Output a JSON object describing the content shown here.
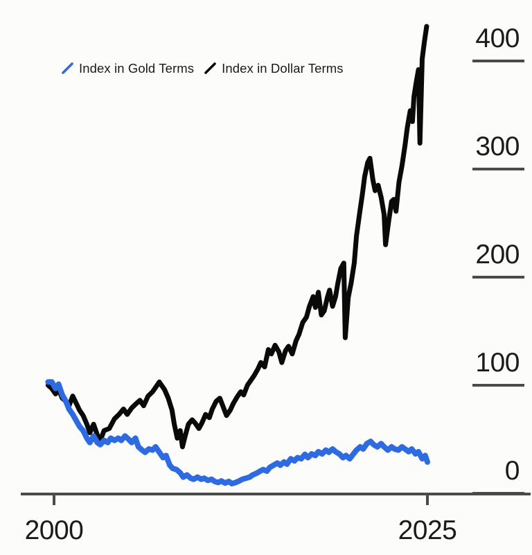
{
  "chart_data": {
    "type": "line",
    "title": "",
    "xlabel": "",
    "ylabel": "",
    "grid": false,
    "legend_position": "top-left",
    "xlim": [
      1999.3,
      2025.9
    ],
    "ylim": [
      0,
      440
    ],
    "x_ticks": [
      "2000",
      "2025"
    ],
    "y_ticks": [
      "0",
      "100",
      "200",
      "300",
      "400"
    ],
    "y_tick_values": [
      0,
      100,
      200,
      300,
      400
    ],
    "x_tick_values": [
      2000,
      2025
    ],
    "colors": {
      "axis": "#4b4b4b",
      "tick_text": "#1b1b1b",
      "background": "#fcfcfa"
    },
    "series": [
      {
        "name": "Index in Gold Terms",
        "color": "#2e6be0",
        "x": [
          1999.6,
          1999.85,
          2000.1,
          2000.3,
          2000.55,
          2000.8,
          2001.0,
          2001.25,
          2001.5,
          2001.7,
          2001.95,
          2002.2,
          2002.4,
          2002.65,
          2002.9,
          2003.1,
          2003.35,
          2003.6,
          2003.8,
          2004.05,
          2004.3,
          2004.5,
          2004.75,
          2005.0,
          2005.2,
          2005.45,
          2005.65,
          2005.9,
          2006.1,
          2006.35,
          2006.6,
          2006.8,
          2007.05,
          2007.3,
          2007.5,
          2007.75,
          2007.95,
          2008.2,
          2008.45,
          2008.65,
          2008.9,
          2009.15,
          2009.35,
          2009.6,
          2009.85,
          2010.05,
          2010.3,
          2010.55,
          2010.75,
          2011.0,
          2011.2,
          2011.45,
          2011.7,
          2011.9,
          2012.15,
          2012.4,
          2012.6,
          2012.85,
          2013.1,
          2013.3,
          2013.55,
          2013.8,
          2014.0,
          2014.25,
          2014.45,
          2014.7,
          2014.95,
          2015.15,
          2015.4,
          2015.6,
          2015.85,
          2016.1,
          2016.3,
          2016.55,
          2016.8,
          2017.0,
          2017.25,
          2017.5,
          2017.7,
          2017.95,
          2018.2,
          2018.4,
          2018.65,
          2018.85,
          2019.1,
          2019.35,
          2019.55,
          2019.8,
          2020.05,
          2020.25,
          2020.5,
          2020.7,
          2020.95,
          2021.2,
          2021.4,
          2021.65,
          2021.9,
          2022.1,
          2022.35,
          2022.6,
          2022.8,
          2023.05,
          2023.3,
          2023.5,
          2023.75,
          2023.95,
          2024.2,
          2024.4,
          2024.65,
          2024.85,
          2025.0
        ],
        "values": [
          103,
          103,
          97,
          101,
          91,
          85,
          78,
          73,
          67,
          62,
          58,
          51,
          47,
          53,
          47,
          45,
          49,
          47,
          51,
          49,
          51,
          49,
          53,
          50,
          47,
          51,
          43,
          40,
          38,
          41,
          40,
          43,
          38,
          33,
          35,
          26,
          23,
          22,
          19,
          15,
          17,
          14,
          13,
          15,
          13,
          14,
          12,
          13,
          11,
          10,
          11.5,
          9.5,
          11,
          9,
          10,
          11.5,
          13,
          14,
          15,
          17,
          18.5,
          20.5,
          22,
          20.5,
          24,
          26,
          28,
          26,
          29,
          27,
          32,
          30,
          33,
          32,
          36,
          33,
          36.5,
          35,
          38.5,
          36.5,
          40,
          38,
          41,
          38.5,
          36.5,
          33,
          35,
          32,
          36.5,
          40,
          43,
          41,
          46,
          48,
          45,
          43,
          46,
          43,
          40,
          43,
          41,
          40,
          43,
          41,
          38.5,
          41,
          36.5,
          38.5,
          32,
          35,
          29
        ]
      },
      {
        "name": "Index in Dollar Terms",
        "color": "#0a0a0a",
        "x": [
          1999.6,
          1999.85,
          2000.1,
          2000.3,
          2000.55,
          2000.8,
          2001.0,
          2001.25,
          2001.5,
          2001.7,
          2001.95,
          2002.2,
          2002.4,
          2002.65,
          2002.9,
          2003.1,
          2003.35,
          2003.7,
          2004.05,
          2004.35,
          2004.65,
          2004.9,
          2005.2,
          2005.5,
          2005.75,
          2006.0,
          2006.3,
          2006.6,
          2006.85,
          2007.05,
          2007.25,
          2007.4,
          2007.65,
          2007.9,
          2008.05,
          2008.25,
          2008.45,
          2008.6,
          2008.8,
          2009.0,
          2009.25,
          2009.45,
          2009.7,
          2009.9,
          2010.15,
          2010.4,
          2010.6,
          2010.85,
          2011.1,
          2011.3,
          2011.55,
          2011.8,
          2012.0,
          2012.25,
          2012.5,
          2012.7,
          2012.95,
          2013.2,
          2013.4,
          2013.65,
          2013.85,
          2014.1,
          2014.35,
          2014.55,
          2014.8,
          2015.05,
          2015.25,
          2015.5,
          2015.7,
          2015.95,
          2016.2,
          2016.4,
          2016.65,
          2016.9,
          2017.1,
          2017.35,
          2017.5,
          2017.7,
          2017.9,
          2018.1,
          2018.3,
          2018.45,
          2018.65,
          2018.85,
          2019.0,
          2019.2,
          2019.4,
          2019.5,
          2019.7,
          2019.9,
          2020.1,
          2020.25,
          2020.45,
          2020.65,
          2020.8,
          2021.0,
          2021.15,
          2021.35,
          2021.5,
          2021.7,
          2021.9,
          2022.1,
          2022.2,
          2022.4,
          2022.6,
          2022.75,
          2022.9,
          2023.1,
          2023.3,
          2023.5,
          2023.65,
          2023.85,
          2024.0,
          2024.1,
          2024.25,
          2024.4,
          2024.5,
          2024.65,
          2024.8,
          2024.95
        ],
        "values": [
          100,
          97,
          92,
          96,
          88,
          85,
          81,
          90,
          83,
          77,
          72,
          64,
          56,
          64,
          54,
          49,
          58,
          60,
          69,
          73,
          78,
          73,
          79,
          83,
          86,
          81,
          90,
          94,
          99,
          103,
          99,
          96,
          88,
          77,
          64,
          51,
          58,
          43,
          54,
          64,
          68,
          65,
          60,
          65,
          73,
          70,
          78,
          85,
          88,
          81,
          72,
          77,
          83,
          89,
          94,
          91,
          100,
          105,
          109,
          115,
          121,
          117,
          133,
          129,
          137,
          131,
          121,
          132,
          136,
          129,
          141,
          147,
          158,
          163,
          173,
          182,
          172,
          186,
          165,
          169,
          181,
          188,
          173,
          182,
          194,
          208,
          213,
          144,
          181,
          195,
          213,
          238,
          258,
          277,
          293,
          306,
          310,
          290,
          280,
          285,
          274,
          258,
          230,
          251,
          270,
          272,
          261,
          288,
          303,
          322,
          338,
          354,
          344,
          367,
          380,
          392,
          324,
          402,
          418,
          432
        ]
      }
    ]
  }
}
